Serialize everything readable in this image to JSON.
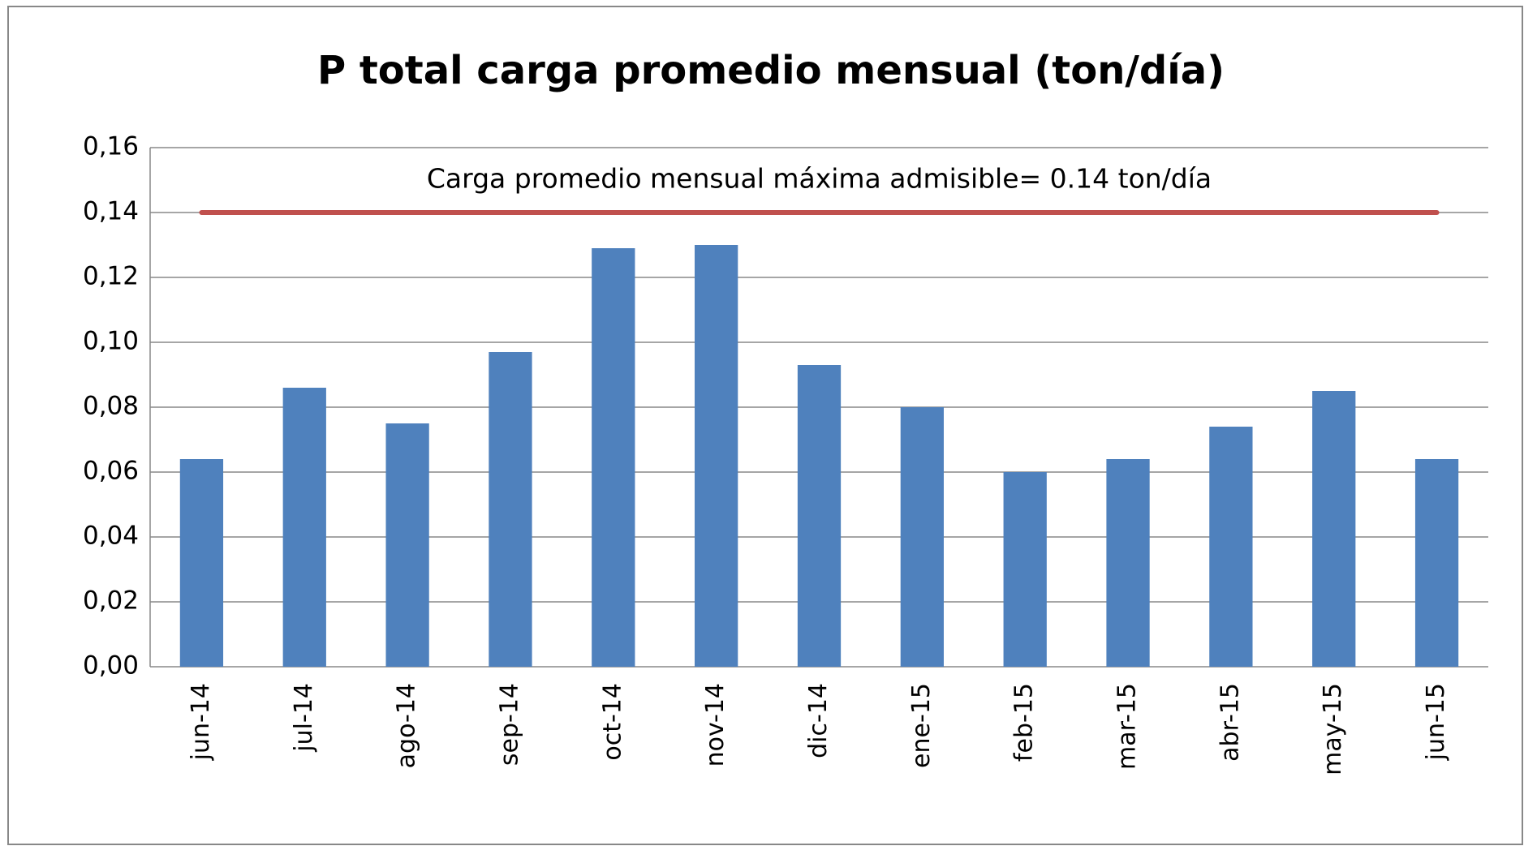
{
  "chart_data": {
    "type": "bar",
    "title": "P total carga promedio mensual (ton/día)",
    "categories": [
      "jun-14",
      "jul-14",
      "ago-14",
      "sep-14",
      "oct-14",
      "nov-14",
      "dic-14",
      "ene-15",
      "feb-15",
      "mar-15",
      "abr-15",
      "may-15",
      "jun-15"
    ],
    "values": [
      0.064,
      0.086,
      0.075,
      0.097,
      0.129,
      0.13,
      0.093,
      0.08,
      0.06,
      0.064,
      0.074,
      0.085,
      0.064
    ],
    "color": "#4f81bd",
    "ylim": [
      0,
      0.16
    ],
    "yticks": [
      {
        "value": 0,
        "label": "0,00"
      },
      {
        "value": 0.02,
        "label": "0,02"
      },
      {
        "value": 0.04,
        "label": "0,04"
      },
      {
        "value": 0.06,
        "label": "0,06"
      },
      {
        "value": 0.08,
        "label": "0,08"
      },
      {
        "value": 0.1,
        "label": "0,10"
      },
      {
        "value": 0.12,
        "label": "0,12"
      },
      {
        "value": 0.14,
        "label": "0,14"
      },
      {
        "value": 0.16,
        "label": "0,16"
      }
    ],
    "grid": true,
    "reference_line": {
      "value": 0.14,
      "label": "Carga promedio mensual máxima admisible= 0.14 ton/día",
      "color": "#c0504d"
    }
  }
}
